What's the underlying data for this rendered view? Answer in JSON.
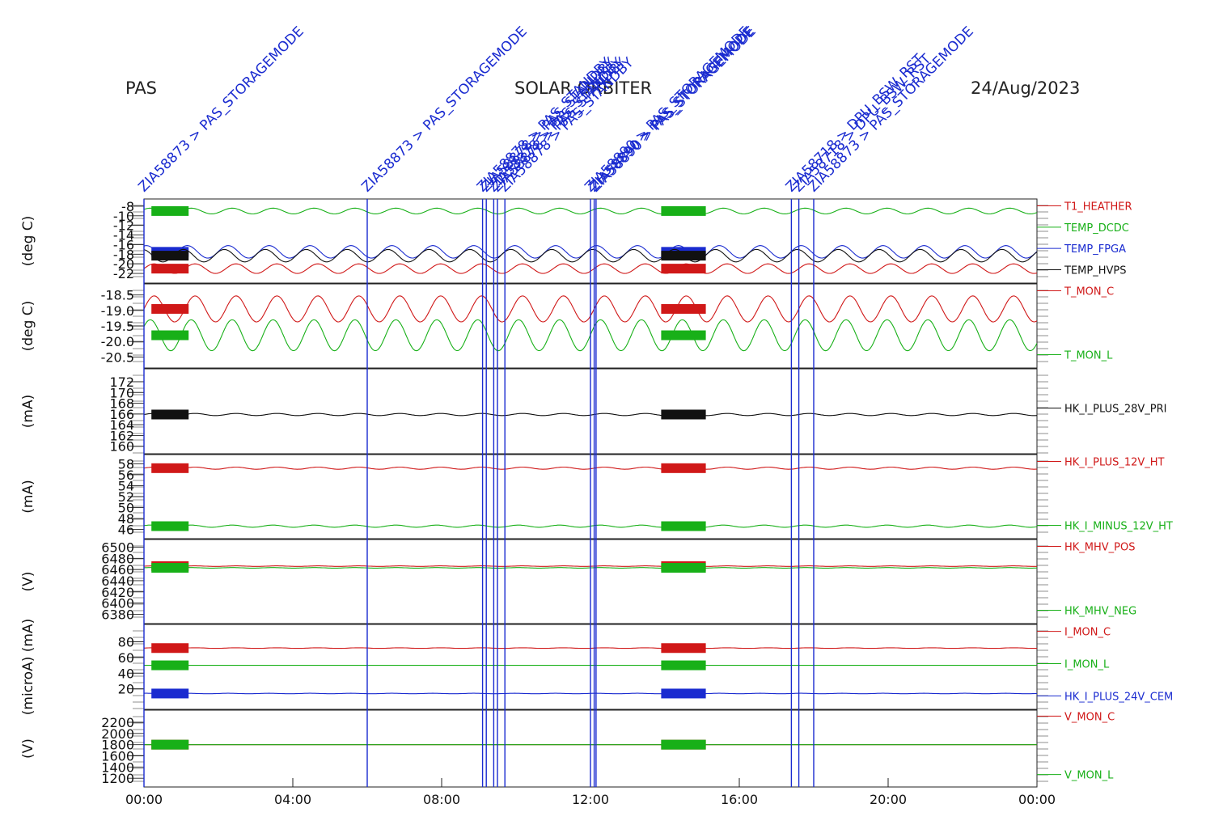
{
  "header": {
    "instrument": "PAS",
    "mission": "SOLAR ORBITER",
    "date": "24/Aug/2023"
  },
  "chart_data": {
    "type": "line",
    "x_axis": {
      "range_hours": [
        0,
        24
      ],
      "tick_labels": [
        "00:00",
        "04:00",
        "08:00",
        "12:00",
        "16:00",
        "20:00",
        "00:00"
      ]
    },
    "events": [
      {
        "time_h": 0.0,
        "label": "ZIA58873 > PAS_STORAGEMODE"
      },
      {
        "time_h": 6.0,
        "label": "ZIA58873 > PAS_STORAGEMODE"
      },
      {
        "time_h": 9.1,
        "label": "ZIA58878 > PAS_STANDBY"
      },
      {
        "time_h": 9.2,
        "label": "ZIA58878 > PAS_STANDBY"
      },
      {
        "time_h": 9.4,
        "label": "ZIA58878 > PAS_STANDBY"
      },
      {
        "time_h": 9.5,
        "label": "ZIA58878 > PAS_STANDBY"
      },
      {
        "time_h": 9.7,
        "label": "ZIA58878 > PAS_STANDBY"
      },
      {
        "time_h": 12.0,
        "label": "ZIA58890 > PAS_STORAGEMODE"
      },
      {
        "time_h": 12.1,
        "label": "ZIA58890 > PAS_STORAGEMODE"
      },
      {
        "time_h": 12.15,
        "label": "ZIA58890 > PAS_STORAGEMODE"
      },
      {
        "time_h": 17.4,
        "label": "ZIA58718 > DPU_BSW_RST"
      },
      {
        "time_h": 17.6,
        "label": "ZIA58718 > DPU_BSW_RST"
      },
      {
        "time_h": 18.0,
        "label": "ZIA58873 > PAS_STORAGEMODE"
      }
    ],
    "panels": [
      {
        "ylabel": "(deg C)",
        "ylim": [
          -23,
          -7.5
        ],
        "ticks": [
          "-8",
          "-10",
          "-12",
          "-14",
          "-16",
          "-18",
          "-20",
          "-22"
        ],
        "tick_values": [
          -8,
          -10,
          -12,
          -14,
          -16,
          -18,
          -20,
          -22
        ],
        "series": [
          {
            "name": "T1_HEATHER",
            "color": "#d01818",
            "mean": -21.0,
            "amp": 1.0,
            "period_h": 1.1
          },
          {
            "name": "TEMP_DCDC",
            "color": "#18b018",
            "mean": -9.0,
            "amp": 0.6,
            "period_h": 1.1
          },
          {
            "name": "TEMP_FPGA",
            "color": "#1a2bd0",
            "mean": -17.5,
            "amp": 1.3,
            "period_h": 1.1
          },
          {
            "name": "TEMP_HVPS",
            "color": "#111111",
            "mean": -18.3,
            "amp": 1.3,
            "period_h": 1.1
          }
        ]
      },
      {
        "ylabel": "(deg C)",
        "ylim": [
          -20.7,
          -18.3
        ],
        "ticks": [
          "-18.5",
          "-19.0",
          "-19.5",
          "-20.0",
          "-20.5"
        ],
        "tick_values": [
          -18.5,
          -19.0,
          -19.5,
          -20.0,
          -20.5
        ],
        "series": [
          {
            "name": "T_MON_C",
            "color": "#d01818",
            "mean": -18.95,
            "amp": 0.42,
            "period_h": 1.1
          },
          {
            "name": "T_MON_L",
            "color": "#18b018",
            "mean": -19.8,
            "amp": 0.5,
            "period_h": 1.1
          }
        ]
      },
      {
        "ylabel": "(mA)",
        "ylim": [
          159.5,
          173.5
        ],
        "ticks": [
          "172",
          "170",
          "168",
          "166",
          "164",
          "162",
          "160"
        ],
        "tick_values": [
          172,
          170,
          168,
          166,
          164,
          162,
          160
        ],
        "series": [
          {
            "name": "HK_I_PLUS_28V_PRI",
            "color": "#111111",
            "mean": 165.9,
            "amp": 0.2,
            "period_h": 1.1
          }
        ]
      },
      {
        "ylabel": "(mA)",
        "ylim": [
          45.2,
          58.8
        ],
        "ticks": [
          "58",
          "56",
          "54",
          "52",
          "50",
          "48",
          "46"
        ],
        "tick_values": [
          58,
          56,
          54,
          52,
          50,
          48,
          46
        ],
        "series": [
          {
            "name": "HK_I_PLUS_12V_HT",
            "color": "#d01818",
            "mean": 57.2,
            "amp": 0.2,
            "period_h": 1.1
          },
          {
            "name": "HK_I_MINUS_12V_HT",
            "color": "#18b018",
            "mean": 46.6,
            "amp": 0.2,
            "period_h": 1.1
          }
        ]
      },
      {
        "ylabel": "(V)",
        "ylim": [
          6372,
          6505
        ],
        "ticks": [
          "6500",
          "6480",
          "6460",
          "6440",
          "6420",
          "6400",
          "6380"
        ],
        "tick_values": [
          6500,
          6480,
          6460,
          6440,
          6420,
          6400,
          6380
        ],
        "series": [
          {
            "name": "HK_MHV_POS",
            "color": "#d01818",
            "mean": 6466,
            "amp": 0.5,
            "period_h": 1.1
          },
          {
            "name": "HK_MHV_NEG",
            "color": "#18b018",
            "mean": 6463,
            "amp": 0.5,
            "period_h": 1.1
          }
        ]
      },
      {
        "ylabel": "(microA) (mA)",
        "ylim": [
          0,
          96
        ],
        "ticks": [
          "80",
          "60",
          "40",
          "20"
        ],
        "tick_values": [
          80,
          60,
          40,
          20
        ],
        "series": [
          {
            "name": "I_MON_C",
            "color": "#d01818",
            "mean": 72,
            "amp": 0.4,
            "period_h": 1.1
          },
          {
            "name": "I_MON_L",
            "color": "#18b018",
            "mean": 50,
            "amp": 0,
            "period_h": 1.1
          },
          {
            "name": "HK_I_PLUS_24V_CEM",
            "color": "#1a2bd0",
            "mean": 14,
            "amp": 0.3,
            "period_h": 1.1
          }
        ]
      },
      {
        "ylabel": "(V)",
        "ylim": [
          1130,
          2330
        ],
        "ticks": [
          "2200",
          "2000",
          "1800",
          "1600",
          "1400",
          "1200"
        ],
        "tick_values": [
          2200,
          2000,
          1800,
          1600,
          1400,
          1200
        ],
        "series": [
          {
            "name": "V_MON_C",
            "color": "#d01818",
            "mean": 1800,
            "amp": 0,
            "period_h": 1.1
          },
          {
            "name": "V_MON_L",
            "color": "#18b018",
            "mean": 1800,
            "amp": 0,
            "period_h": 1.1
          }
        ]
      }
    ]
  }
}
